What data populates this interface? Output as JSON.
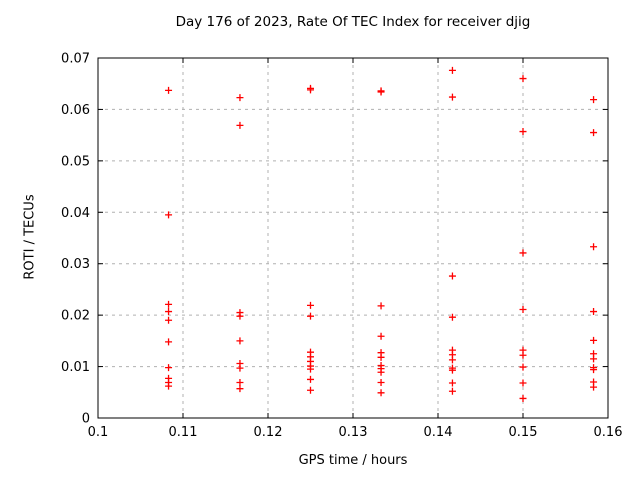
{
  "chart_data": {
    "type": "scatter",
    "title": "Day 176 of 2023, Rate Of TEC Index for receiver djig",
    "xlabel": "GPS time / hours",
    "ylabel": "ROTI / TECUs",
    "xlim": [
      0.1,
      0.16
    ],
    "ylim": [
      0,
      0.07
    ],
    "xticks": {
      "values": [
        0.1,
        0.11,
        0.12,
        0.13,
        0.14,
        0.15,
        0.16
      ],
      "labels": [
        "0.1",
        "0.11",
        "0.12",
        "0.13",
        "0.14",
        "0.15",
        "0.16"
      ]
    },
    "yticks": {
      "values": [
        0,
        0.01,
        0.02,
        0.03,
        0.04,
        0.05,
        0.06,
        0.07
      ],
      "labels": [
        "0",
        "0.01",
        "0.02",
        "0.03",
        "0.04",
        "0.05",
        "0.06",
        "0.07"
      ]
    },
    "grid": "dashed",
    "legend": "none",
    "marker": {
      "shape": "plus",
      "color": "#ff0000",
      "size": 7
    },
    "colors": {
      "marker": "#ff0000",
      "grid": "#b0b0b0",
      "axis": "#000000",
      "background": "#ffffff"
    },
    "series": [
      {
        "name": "ROTI",
        "points": [
          [
            0.1083,
            0.0637
          ],
          [
            0.1083,
            0.0395
          ],
          [
            0.1083,
            0.0221
          ],
          [
            0.1083,
            0.0207
          ],
          [
            0.1083,
            0.019
          ],
          [
            0.1083,
            0.0148
          ],
          [
            0.1083,
            0.0098
          ],
          [
            0.1083,
            0.0077
          ],
          [
            0.1083,
            0.0069
          ],
          [
            0.1083,
            0.0062
          ],
          [
            0.1167,
            0.0623
          ],
          [
            0.1167,
            0.0569
          ],
          [
            0.1167,
            0.0205
          ],
          [
            0.1167,
            0.0198
          ],
          [
            0.1167,
            0.015
          ],
          [
            0.1167,
            0.0106
          ],
          [
            0.1167,
            0.0097
          ],
          [
            0.1167,
            0.0069
          ],
          [
            0.1167,
            0.0057
          ],
          [
            0.125,
            0.0641
          ],
          [
            0.125,
            0.0638
          ],
          [
            0.125,
            0.0219
          ],
          [
            0.125,
            0.0198
          ],
          [
            0.125,
            0.0128
          ],
          [
            0.125,
            0.0119
          ],
          [
            0.125,
            0.011
          ],
          [
            0.125,
            0.0101
          ],
          [
            0.125,
            0.0095
          ],
          [
            0.125,
            0.0075
          ],
          [
            0.125,
            0.0054
          ],
          [
            0.1333,
            0.0636
          ],
          [
            0.1333,
            0.0634
          ],
          [
            0.1333,
            0.0218
          ],
          [
            0.1333,
            0.0159
          ],
          [
            0.1333,
            0.0127
          ],
          [
            0.1333,
            0.0118
          ],
          [
            0.1333,
            0.0102
          ],
          [
            0.1333,
            0.0096
          ],
          [
            0.1333,
            0.0089
          ],
          [
            0.1333,
            0.0069
          ],
          [
            0.1333,
            0.0049
          ],
          [
            0.1417,
            0.0676
          ],
          [
            0.1417,
            0.0624
          ],
          [
            0.1417,
            0.0276
          ],
          [
            0.1417,
            0.0196
          ],
          [
            0.1417,
            0.0132
          ],
          [
            0.1417,
            0.0123
          ],
          [
            0.1417,
            0.0113
          ],
          [
            0.1417,
            0.0097
          ],
          [
            0.1417,
            0.0093
          ],
          [
            0.1417,
            0.0068
          ],
          [
            0.1417,
            0.0052
          ],
          [
            0.15,
            0.066
          ],
          [
            0.15,
            0.0557
          ],
          [
            0.15,
            0.0321
          ],
          [
            0.15,
            0.0211
          ],
          [
            0.15,
            0.0132
          ],
          [
            0.15,
            0.0122
          ],
          [
            0.15,
            0.0099
          ],
          [
            0.15,
            0.0068
          ],
          [
            0.15,
            0.0038
          ],
          [
            0.1583,
            0.0619
          ],
          [
            0.1583,
            0.0555
          ],
          [
            0.1583,
            0.0333
          ],
          [
            0.1583,
            0.0207
          ],
          [
            0.1583,
            0.0151
          ],
          [
            0.1583,
            0.0125
          ],
          [
            0.1583,
            0.0115
          ],
          [
            0.1583,
            0.0098
          ],
          [
            0.1583,
            0.0094
          ],
          [
            0.1583,
            0.007
          ],
          [
            0.1583,
            0.006
          ]
        ]
      }
    ]
  }
}
